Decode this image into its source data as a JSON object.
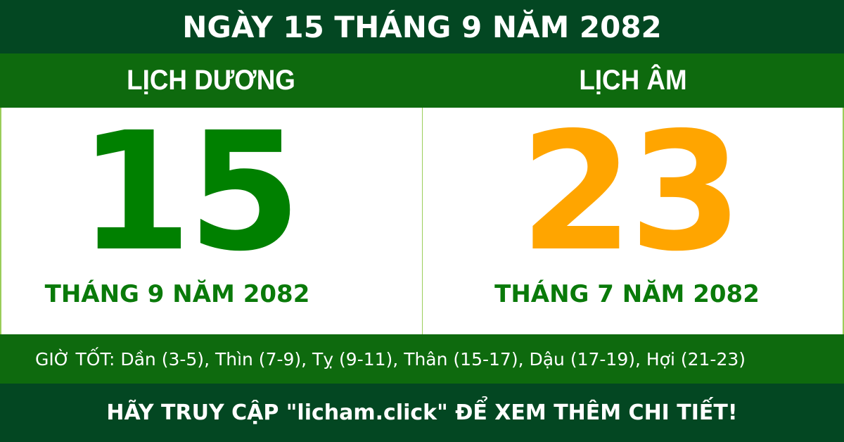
{
  "title": "NGÀY 15 THÁNG 9 NĂM 2082",
  "solar": {
    "label": "LỊCH DƯƠNG",
    "day": "15",
    "month_year": "THÁNG 9 NĂM 2082"
  },
  "lunar": {
    "label": "LỊCH ÂM",
    "day": "23",
    "month_year": "THÁNG 7 NĂM 2082"
  },
  "good_hours": "GIỜ TỐT: Dần (3-5), Thìn (7-9), Tỵ (9-11), Thân (15-17), Dậu (17-19), Hợi (21-23)",
  "footer": "HÃY TRUY CẬP \"licham.click\" ĐỂ XEM THÊM CHI TIẾT!",
  "colors": {
    "dark_green": "#034722",
    "green": "#0e6a0e",
    "solar_day": "#008000",
    "lunar_day": "#ffa500"
  }
}
